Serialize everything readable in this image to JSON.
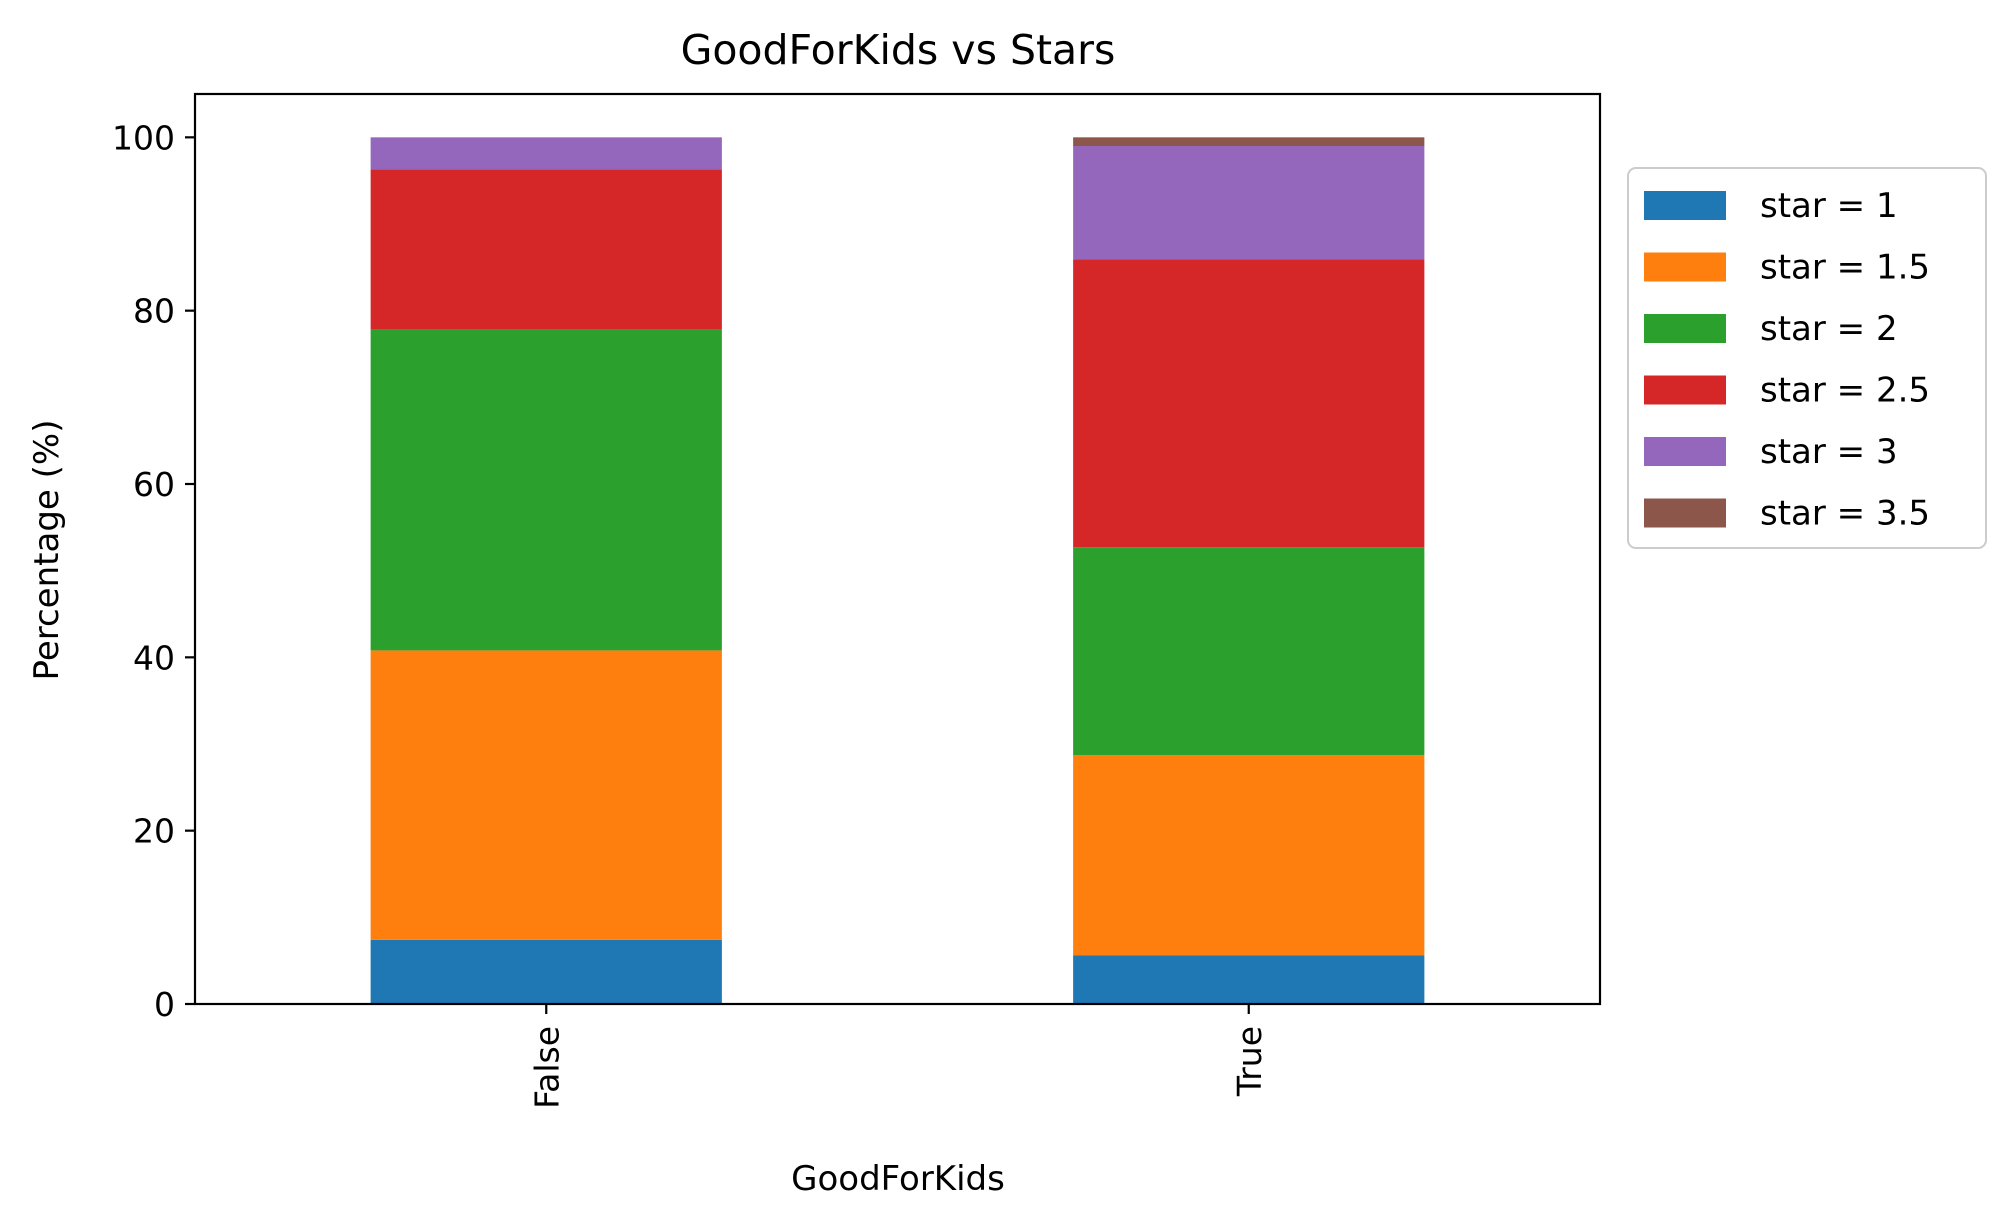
{
  "chart_data": {
    "type": "bar",
    "stacked": true,
    "title": "GoodForKids vs Stars",
    "xlabel": "GoodForKids",
    "ylabel": "Percentage (%)",
    "categories": [
      "False",
      "True"
    ],
    "ylim": [
      0,
      105
    ],
    "yticks": [
      0,
      20,
      40,
      60,
      80,
      100
    ],
    "ytick_labels": [
      "0",
      "20",
      "40",
      "60",
      "80",
      "100"
    ],
    "grid": false,
    "legend_position": "outside-right",
    "series": [
      {
        "name": "star = 1",
        "color": "#1f77b4",
        "values": [
          7.4,
          5.6
        ]
      },
      {
        "name": "star = 1.5",
        "color": "#ff7f0e",
        "values": [
          33.4,
          23.1
        ]
      },
      {
        "name": "star = 2",
        "color": "#2ca02c",
        "values": [
          37.0,
          24.0
        ]
      },
      {
        "name": "star = 2.5",
        "color": "#d62728",
        "values": [
          18.5,
          33.2
        ]
      },
      {
        "name": "star = 3",
        "color": "#9467bd",
        "values": [
          3.7,
          13.1
        ]
      },
      {
        "name": "star = 3.5",
        "color": "#8c564b",
        "values": [
          0.0,
          1.0
        ]
      }
    ]
  }
}
